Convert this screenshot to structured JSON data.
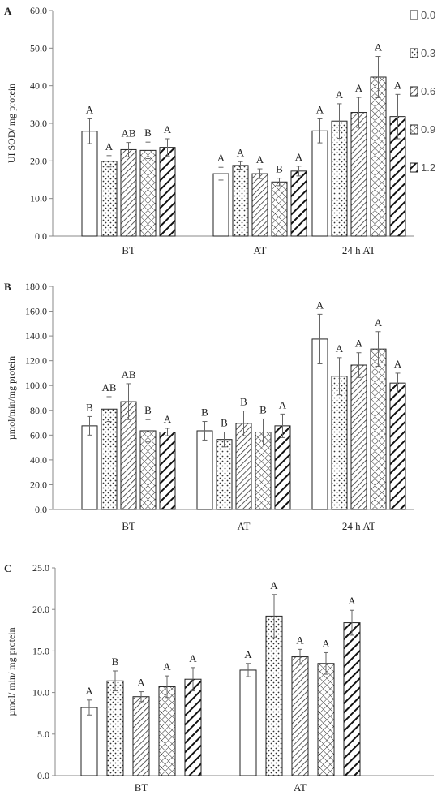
{
  "patterns": [
    {
      "id": "p0",
      "name": "open"
    },
    {
      "id": "p3",
      "name": "dots"
    },
    {
      "id": "p6",
      "name": "diag-hatch"
    },
    {
      "id": "p9",
      "name": "crosshatch"
    },
    {
      "id": "p12",
      "name": "thick-diag"
    }
  ],
  "legend": [
    "0.0",
    "0.3",
    "0.6",
    "0.9",
    "1.2"
  ],
  "chart_data": [
    {
      "panel": "A",
      "type": "bar",
      "ylabel": "UI SOD/ mg protein",
      "ylim": [
        0,
        60
      ],
      "yticks": [
        "0.0",
        "10.0",
        "20.0",
        "30.0",
        "40.0",
        "50.0",
        "60.0"
      ],
      "categories": [
        "BT",
        "AT",
        "24 h AT"
      ],
      "series": [
        {
          "name": "0.0",
          "values": [
            27.9,
            16.6,
            28.0
          ],
          "errors": [
            3.3,
            1.7,
            3.2
          ],
          "letters": [
            "A",
            "A",
            "A"
          ]
        },
        {
          "name": "0.3",
          "values": [
            19.9,
            18.8,
            30.6
          ],
          "errors": [
            1.5,
            1.0,
            4.6
          ],
          "letters": [
            "A",
            "A",
            "A"
          ]
        },
        {
          "name": "0.6",
          "values": [
            23.0,
            16.6,
            32.9
          ],
          "errors": [
            1.9,
            1.3,
            4.0
          ],
          "letters": [
            "AB",
            "A",
            "A"
          ]
        },
        {
          "name": "0.9",
          "values": [
            22.8,
            14.4,
            42.3
          ],
          "errors": [
            2.2,
            1.0,
            5.5
          ],
          "letters": [
            "B",
            "B",
            "A"
          ]
        },
        {
          "name": "1.2",
          "values": [
            23.6,
            17.3,
            31.8
          ],
          "errors": [
            2.3,
            1.3,
            5.9
          ],
          "letters": [
            "A",
            "A",
            "A"
          ]
        }
      ]
    },
    {
      "panel": "B",
      "type": "bar",
      "ylabel": "µmol/min/mg protein",
      "ylim": [
        0,
        180
      ],
      "yticks": [
        "0.0",
        "20.0",
        "40.0",
        "60.0",
        "80.0",
        "100.0",
        "120.0",
        "140.0",
        "160.0",
        "180.0"
      ],
      "categories": [
        "BT",
        "AT",
        "24 h AT"
      ],
      "series": [
        {
          "name": "0.0",
          "values": [
            67.5,
            63.5,
            137.5
          ],
          "errors": [
            7.5,
            7.5,
            20.0
          ],
          "letters": [
            "B",
            "B",
            "A"
          ]
        },
        {
          "name": "0.3",
          "values": [
            81.0,
            56.5,
            107.5
          ],
          "errors": [
            10.0,
            6.0,
            15.0
          ],
          "letters": [
            "AB",
            "B",
            "A"
          ]
        },
        {
          "name": "0.6",
          "values": [
            87.0,
            69.5,
            116.5
          ],
          "errors": [
            14.5,
            10.0,
            10.0
          ],
          "letters": [
            "AB",
            "B",
            "A"
          ]
        },
        {
          "name": "0.9",
          "values": [
            63.5,
            62.5,
            129.5
          ],
          "errors": [
            9.0,
            10.5,
            14.0
          ],
          "letters": [
            "B",
            "B",
            "A"
          ]
        },
        {
          "name": "1.2",
          "values": [
            62.5,
            67.5,
            102.0
          ],
          "errors": [
            3.0,
            9.5,
            8.0
          ],
          "letters": [
            "A",
            "A",
            "A"
          ]
        }
      ]
    },
    {
      "panel": "C",
      "type": "bar",
      "ylabel": "µmol/ min/ mg protein",
      "ylim": [
        0,
        25
      ],
      "yticks": [
        "0.0",
        "5.0",
        "10.0",
        "15.0",
        "20.0",
        "25.0"
      ],
      "categories": [
        "BT",
        "AT"
      ],
      "series": [
        {
          "name": "0.0",
          "values": [
            8.2,
            12.7
          ],
          "errors": [
            0.9,
            0.8
          ],
          "letters": [
            "A",
            "A"
          ]
        },
        {
          "name": "0.3",
          "values": [
            11.4,
            19.2
          ],
          "errors": [
            1.2,
            2.6
          ],
          "letters": [
            "B",
            "A"
          ]
        },
        {
          "name": "0.6",
          "values": [
            9.5,
            14.3
          ],
          "errors": [
            0.6,
            0.9
          ],
          "letters": [
            "A",
            "A"
          ]
        },
        {
          "name": "0.9",
          "values": [
            10.7,
            13.5
          ],
          "errors": [
            1.3,
            1.3
          ],
          "letters": [
            "A",
            "A"
          ]
        },
        {
          "name": "1.2",
          "values": [
            11.6,
            18.4
          ],
          "errors": [
            1.4,
            1.5
          ],
          "letters": [
            "A",
            "A"
          ]
        }
      ]
    }
  ]
}
